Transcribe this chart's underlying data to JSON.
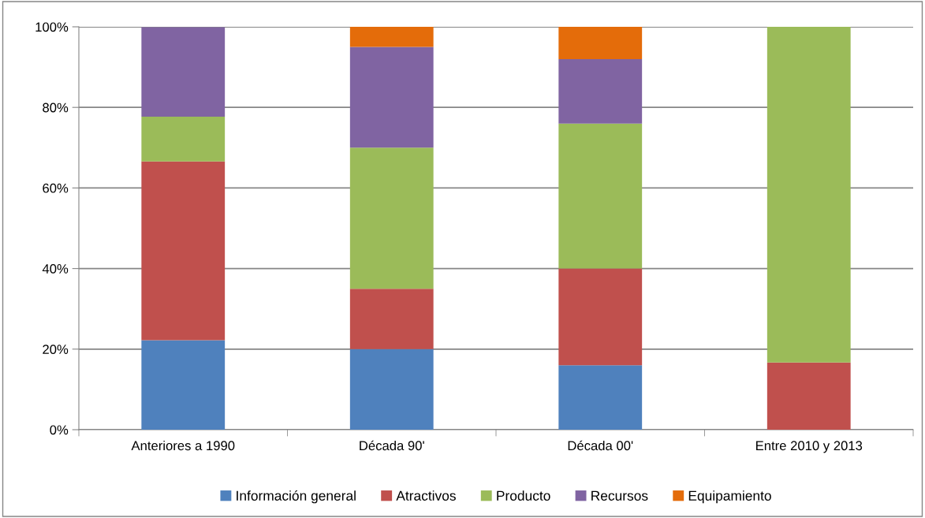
{
  "chart_data": {
    "type": "bar",
    "stacked": true,
    "categories": [
      "Anteriores a 1990",
      "Década 90'",
      "Década 00'",
      "Entre 2010 y 2013"
    ],
    "series": [
      {
        "name": "Información general",
        "color": "#4f81bd",
        "values": [
          22.2,
          20,
          16,
          0
        ]
      },
      {
        "name": "Atractivos",
        "color": "#c0504d",
        "values": [
          44.4,
          15,
          24,
          16.7
        ]
      },
      {
        "name": "Producto",
        "color": "#9bbb59",
        "values": [
          11.1,
          35,
          36,
          83.3
        ]
      },
      {
        "name": "Recursos",
        "color": "#8064a2",
        "values": [
          22.2,
          25,
          16,
          0
        ]
      },
      {
        "name": "Equipamiento",
        "color": "#e46c0a",
        "values": [
          0,
          5,
          8,
          0
        ]
      }
    ],
    "ylim": [
      0,
      100
    ],
    "yticks": [
      {
        "value": 0,
        "label": "0%"
      },
      {
        "value": 20,
        "label": "20%"
      },
      {
        "value": 40,
        "label": "40%"
      },
      {
        "value": 60,
        "label": "60%"
      },
      {
        "value": 80,
        "label": "80%"
      },
      {
        "value": 100,
        "label": "100%"
      }
    ],
    "grid": "y",
    "legend": "bottom"
  }
}
